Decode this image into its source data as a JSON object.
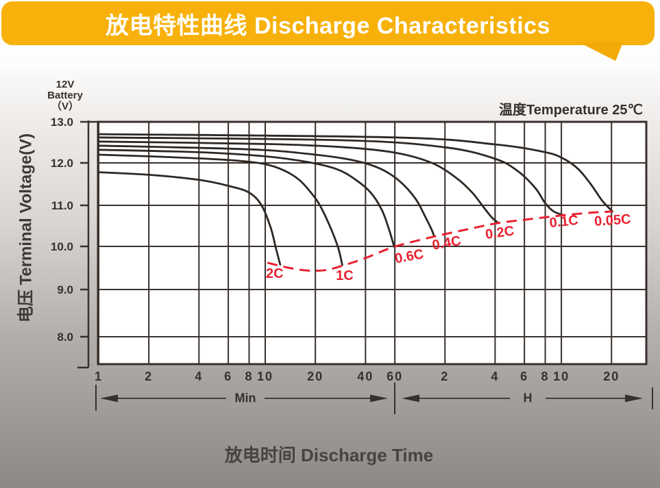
{
  "banner": {
    "title": "放电特性曲线 Discharge Characteristics",
    "bg_color": "#F7B10A",
    "tail_color": "#F2AB06",
    "text_color": "#FFFFFF"
  },
  "labels": {
    "battery_lines": [
      "12V",
      "Battery",
      "（V）"
    ],
    "temperature": "温度Temperature 25℃",
    "y_axis_title": "电压 Terminal Voltage(V)",
    "x_axis_title": "放电时间 Discharge Time",
    "minutes_segment": "Min",
    "hours_segment": "H"
  },
  "colors": {
    "line_color": "#2E2824",
    "cutoff_color": "#E8212F",
    "grid_color": "#37302D",
    "text_color": "#37302C",
    "plot_bg": "#FFFFFF"
  },
  "chart_data": {
    "type": "line",
    "title": "放电特性曲线 Discharge Characteristics",
    "xlabel": "放电时间 Discharge Time",
    "ylabel": "电压 Terminal Voltage(V)",
    "temperature": "25℃",
    "battery_type": "12V Battery",
    "x_scale": "log",
    "x_unit": "minutes",
    "grid": true,
    "ylim": [
      7.4,
      13.0
    ],
    "x_unit_segments": [
      {
        "label": "Min",
        "from_min": 1,
        "to_min": 60
      },
      {
        "label": "H",
        "from_min": 60,
        "to_min": 1800
      }
    ],
    "x_ticks": [
      {
        "label": "1",
        "t": 1
      },
      {
        "label": "2",
        "t": 2
      },
      {
        "label": "4",
        "t": 4
      },
      {
        "label": "6",
        "t": 6
      },
      {
        "label": "8",
        "t": 8
      },
      {
        "label": "10",
        "t": 10
      },
      {
        "label": "20",
        "t": 20
      },
      {
        "label": "40",
        "t": 40
      },
      {
        "label": "60",
        "t": 60
      },
      {
        "label": "2",
        "t": 120
      },
      {
        "label": "4",
        "t": 240
      },
      {
        "label": "6",
        "t": 360
      },
      {
        "label": "8",
        "t": 480
      },
      {
        "label": "10",
        "t": 600
      },
      {
        "label": "20",
        "t": 1200
      }
    ],
    "y_ticks": [
      {
        "label": "13.0",
        "v": 13
      },
      {
        "label": "12.0",
        "v": 12
      },
      {
        "label": "11.0",
        "v": 11
      },
      {
        "label": "10.0",
        "v": 10
      },
      {
        "label": "9.0",
        "v": 9
      },
      {
        "label": "8.0",
        "v": 8
      }
    ],
    "series": [
      {
        "name": "2C",
        "points": [
          [
            1,
            11.78
          ],
          [
            2,
            11.72
          ],
          [
            4,
            11.6
          ],
          [
            6,
            11.46
          ],
          [
            8,
            11.3
          ],
          [
            9.5,
            11.0
          ],
          [
            10.8,
            10.45
          ],
          [
            11.6,
            9.95
          ],
          [
            12.3,
            9.58
          ]
        ]
      },
      {
        "name": "1C",
        "points": [
          [
            1,
            12.2
          ],
          [
            2,
            12.16
          ],
          [
            4,
            12.11
          ],
          [
            7,
            12.05
          ],
          [
            10,
            11.97
          ],
          [
            13,
            11.82
          ],
          [
            16,
            11.6
          ],
          [
            19,
            11.28
          ],
          [
            21.5,
            10.97
          ],
          [
            25,
            10.4
          ],
          [
            27.5,
            9.95
          ],
          [
            29,
            9.57
          ]
        ]
      },
      {
        "name": "0.6C",
        "points": [
          [
            1,
            12.32
          ],
          [
            4,
            12.26
          ],
          [
            10,
            12.16
          ],
          [
            18,
            12.02
          ],
          [
            27,
            11.85
          ],
          [
            35,
            11.6
          ],
          [
            43,
            11.3
          ],
          [
            50,
            10.9
          ],
          [
            55,
            10.45
          ],
          [
            59.5,
            9.99
          ]
        ]
      },
      {
        "name": "0.4C",
        "points": [
          [
            1,
            12.42
          ],
          [
            8,
            12.33
          ],
          [
            20,
            12.2
          ],
          [
            35,
            12.05
          ],
          [
            50,
            11.85
          ],
          [
            65,
            11.55
          ],
          [
            80,
            11.15
          ],
          [
            92,
            10.7
          ],
          [
            100,
            10.4
          ],
          [
            103.5,
            10.24
          ]
        ]
      },
      {
        "name": "0.2C",
        "points": [
          [
            1,
            12.52
          ],
          [
            10,
            12.46
          ],
          [
            30,
            12.38
          ],
          [
            60,
            12.25
          ],
          [
            100,
            12.0
          ],
          [
            140,
            11.65
          ],
          [
            175,
            11.3
          ],
          [
            205,
            10.95
          ],
          [
            230,
            10.7
          ],
          [
            251,
            10.57
          ]
        ]
      },
      {
        "name": "0.1C",
        "points": [
          [
            1,
            12.62
          ],
          [
            30,
            12.55
          ],
          [
            120,
            12.38
          ],
          [
            240,
            12.1
          ],
          [
            330,
            11.8
          ],
          [
            420,
            11.4
          ],
          [
            480,
            11.05
          ],
          [
            540,
            10.85
          ],
          [
            620,
            10.76
          ]
        ]
      },
      {
        "name": "0.05C",
        "points": [
          [
            1,
            12.7
          ],
          [
            60,
            12.62
          ],
          [
            240,
            12.45
          ],
          [
            480,
            12.26
          ],
          [
            620,
            12.1
          ],
          [
            760,
            11.85
          ],
          [
            900,
            11.5
          ],
          [
            1050,
            11.12
          ],
          [
            1150,
            10.95
          ],
          [
            1215,
            10.85
          ]
        ]
      }
    ],
    "cutoff_line": {
      "name": "discharge-cutoff-voltage",
      "dashed": true,
      "points": [
        [
          10.3,
          9.62
        ],
        [
          14,
          9.5
        ],
        [
          18,
          9.44
        ],
        [
          23,
          9.45
        ],
        [
          29,
          9.55
        ],
        [
          40,
          9.73
        ],
        [
          59.5,
          9.99
        ],
        [
          103.5,
          10.24
        ],
        [
          170,
          10.43
        ],
        [
          251,
          10.57
        ],
        [
          400,
          10.67
        ],
        [
          620,
          10.76
        ],
        [
          900,
          10.82
        ],
        [
          1215,
          10.85
        ]
      ]
    },
    "series_labels": [
      {
        "text": "2C",
        "t": 11.4,
        "v": 9.27,
        "angle": 0
      },
      {
        "text": "1C",
        "t": 30,
        "v": 9.22,
        "angle": 0
      },
      {
        "text": "0.6C",
        "t": 74,
        "v": 9.67,
        "angle": -10
      },
      {
        "text": "0.4C",
        "t": 124,
        "v": 9.98,
        "angle": -10
      },
      {
        "text": "0.2C",
        "t": 258,
        "v": 10.23,
        "angle": -8
      },
      {
        "text": "0.1C",
        "t": 625,
        "v": 10.5,
        "angle": -6
      },
      {
        "text": "0.05C",
        "t": 1223,
        "v": 10.53,
        "angle": -4
      }
    ]
  }
}
